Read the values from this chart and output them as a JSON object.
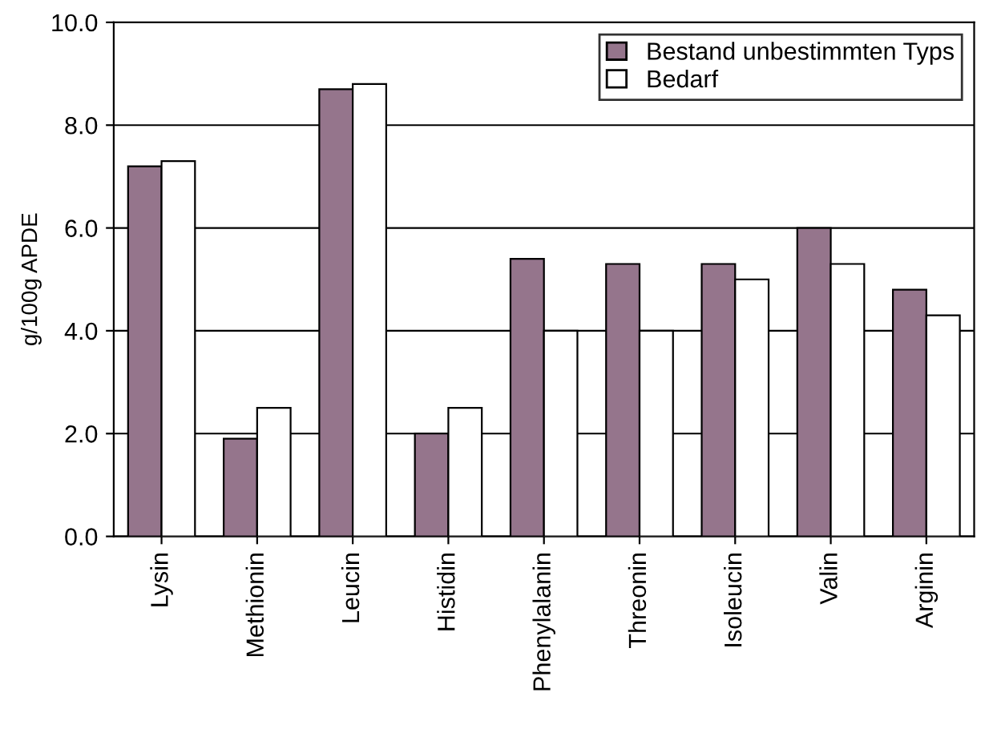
{
  "chart_data": {
    "type": "bar",
    "ylabel": "g/100g APDE",
    "categories": [
      "Lysin",
      "Methionin",
      "Leucin",
      "Histidin",
      "Phenylalanin",
      "Threonin",
      "Isoleucin",
      "Valin",
      "Arginin"
    ],
    "series": [
      {
        "name": "Bestand unbestimmten Typs",
        "color": "#95758c",
        "values": [
          7.2,
          1.9,
          8.7,
          2.0,
          5.4,
          5.3,
          5.3,
          6.0,
          4.8
        ]
      },
      {
        "name": "Bedarf",
        "color": "#ffffff",
        "values": [
          7.3,
          2.5,
          8.8,
          2.5,
          4.0,
          4.0,
          5.0,
          5.3,
          4.3
        ]
      }
    ],
    "ylim": [
      0,
      10
    ],
    "yticks": [
      {
        "value": 0,
        "label": "0.0"
      },
      {
        "value": 2,
        "label": "2.0"
      },
      {
        "value": 4,
        "label": "4.0"
      },
      {
        "value": 6,
        "label": "6.0"
      },
      {
        "value": 8,
        "label": "8.0"
      },
      {
        "value": 10,
        "label": "10.0"
      }
    ],
    "grid": "y",
    "legend": "top right"
  }
}
